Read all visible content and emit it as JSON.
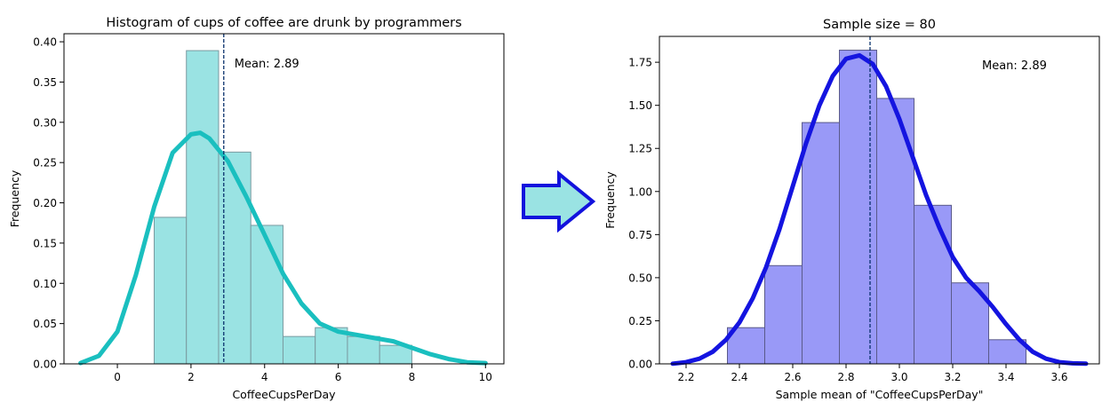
{
  "chart_data": [
    {
      "type": "bar",
      "title": "Histogram of cups of coffee are drunk by programmers",
      "xlabel": "CoffeeCupsPerDay",
      "ylabel": "Frequency",
      "xlim": [
        -1.45,
        10.5
      ],
      "ylim": [
        0,
        0.41
      ],
      "xticks": [
        0,
        2,
        4,
        6,
        8,
        10
      ],
      "yticks": [
        0.0,
        0.05,
        0.1,
        0.15,
        0.2,
        0.25,
        0.3,
        0.35,
        0.4
      ],
      "ytick_labels": [
        "0.00",
        "0.05",
        "0.10",
        "0.15",
        "0.20",
        "0.25",
        "0.30",
        "0.35",
        "0.40"
      ],
      "grid": false,
      "bar_color": "#9ae3e3",
      "bar_edge_color": "#7a9aa0",
      "bins": [
        {
          "x0": 1.0,
          "x1": 1.875,
          "value": 0.182
        },
        {
          "x0": 1.875,
          "x1": 2.75,
          "value": 0.389
        },
        {
          "x0": 2.75,
          "x1": 3.625,
          "value": 0.263
        },
        {
          "x0": 3.625,
          "x1": 4.5,
          "value": 0.172
        },
        {
          "x0": 4.5,
          "x1": 5.375,
          "value": 0.034
        },
        {
          "x0": 5.375,
          "x1": 6.25,
          "value": 0.045
        },
        {
          "x0": 6.25,
          "x1": 7.125,
          "value": 0.034
        },
        {
          "x0": 7.125,
          "x1": 8.0,
          "value": 0.023
        }
      ],
      "kde_color": "#1abfbf",
      "kde": {
        "x": [
          -1.0,
          -0.5,
          0.0,
          0.5,
          1.0,
          1.5,
          2.0,
          2.25,
          2.5,
          3.0,
          3.5,
          4.0,
          4.5,
          5.0,
          5.5,
          6.0,
          6.5,
          7.0,
          7.5,
          8.0,
          8.5,
          9.0,
          9.5,
          10.0
        ],
        "y": [
          0.001,
          0.01,
          0.04,
          0.11,
          0.195,
          0.262,
          0.285,
          0.287,
          0.28,
          0.252,
          0.208,
          0.16,
          0.112,
          0.075,
          0.05,
          0.04,
          0.036,
          0.032,
          0.028,
          0.02,
          0.012,
          0.006,
          0.002,
          0.001
        ]
      },
      "mean_value": 2.89,
      "mean_label": "Mean: 2.89",
      "mean_line_color": "#08306b"
    },
    {
      "type": "bar",
      "title": "Sample size = 80",
      "xlabel": "Sample mean of \"CoffeeCupsPerDay\"",
      "ylabel": "Frequency",
      "xlim": [
        2.1,
        3.75
      ],
      "ylim": [
        0,
        1.9
      ],
      "xticks": [
        2.2,
        2.4,
        2.6,
        2.8,
        3.0,
        3.2,
        3.4,
        3.6
      ],
      "xtick_labels": [
        "2.2",
        "2.4",
        "2.6",
        "2.8",
        "3.0",
        "3.2",
        "3.4",
        "3.6"
      ],
      "yticks": [
        0.0,
        0.25,
        0.5,
        0.75,
        1.0,
        1.25,
        1.5,
        1.75
      ],
      "ytick_labels": [
        "0.00",
        "0.25",
        "0.50",
        "0.75",
        "1.00",
        "1.25",
        "1.50",
        "1.75"
      ],
      "grid": false,
      "bar_color": "#9999f7",
      "bar_edge_color": "#5a5a8a",
      "bins": [
        {
          "x0": 2.355,
          "x1": 2.495,
          "value": 0.21
        },
        {
          "x0": 2.495,
          "x1": 2.635,
          "value": 0.57
        },
        {
          "x0": 2.635,
          "x1": 2.775,
          "value": 1.4
        },
        {
          "x0": 2.775,
          "x1": 2.915,
          "value": 1.82
        },
        {
          "x0": 2.915,
          "x1": 3.055,
          "value": 1.54
        },
        {
          "x0": 3.055,
          "x1": 3.195,
          "value": 0.92
        },
        {
          "x0": 3.195,
          "x1": 3.335,
          "value": 0.47
        },
        {
          "x0": 3.335,
          "x1": 3.475,
          "value": 0.14
        }
      ],
      "kde_color": "#1414e0",
      "kde": {
        "x": [
          2.15,
          2.2,
          2.25,
          2.3,
          2.35,
          2.4,
          2.45,
          2.5,
          2.55,
          2.6,
          2.65,
          2.7,
          2.75,
          2.8,
          2.85,
          2.9,
          2.95,
          3.0,
          3.05,
          3.1,
          3.15,
          3.2,
          3.25,
          3.3,
          3.35,
          3.4,
          3.45,
          3.5,
          3.55,
          3.6,
          3.65,
          3.7
        ],
        "y": [
          0.001,
          0.01,
          0.03,
          0.07,
          0.14,
          0.24,
          0.38,
          0.56,
          0.78,
          1.03,
          1.28,
          1.5,
          1.67,
          1.77,
          1.79,
          1.74,
          1.61,
          1.42,
          1.2,
          0.98,
          0.79,
          0.62,
          0.5,
          0.42,
          0.33,
          0.23,
          0.14,
          0.07,
          0.03,
          0.01,
          0.003,
          0.001
        ]
      },
      "mean_value": 2.89,
      "mean_label": "Mean: 2.89",
      "mean_line_color": "#08306b"
    }
  ],
  "arrow": {
    "icon": "right-arrow-icon",
    "fill": "#9ae3e3",
    "stroke": "#1212dd"
  }
}
